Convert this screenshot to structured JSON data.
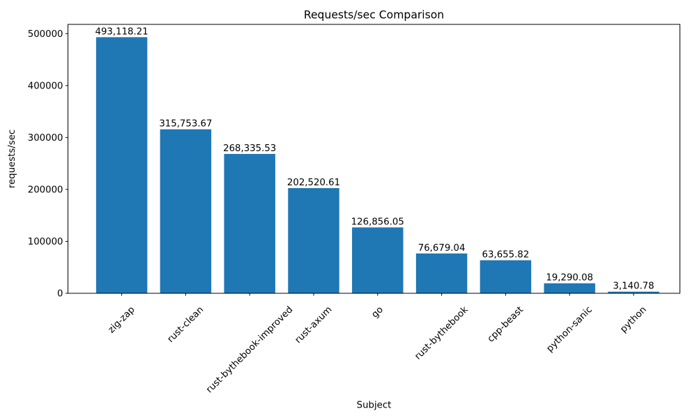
{
  "chart_data": {
    "type": "bar",
    "title": "Requests/sec Comparison",
    "xlabel": "Subject",
    "ylabel": "requests/sec",
    "categories": [
      "zig-zap",
      "rust-clean",
      "rust-bythebook-improved",
      "rust-axum",
      "go",
      "rust-bythebook",
      "cpp-beast",
      "python-sanic",
      "python"
    ],
    "values": [
      493118.21,
      315753.67,
      268335.53,
      202520.61,
      126856.05,
      76679.04,
      63655.82,
      19290.08,
      3140.78
    ],
    "value_labels": [
      "493,118.21",
      "315,753.67",
      "268,335.53",
      "202,520.61",
      "126,856.05",
      "76,679.04",
      "63,655.82",
      "19,290.08",
      "3,140.78"
    ],
    "y_ticks": [
      0,
      100000,
      200000,
      300000,
      400000,
      500000
    ],
    "y_tick_labels": [
      "0",
      "100000",
      "200000",
      "300000",
      "400000",
      "500000"
    ],
    "ylim": [
      0,
      517774
    ],
    "x_tick_rotation": 45,
    "bar_color": "#1f77b4",
    "grid": false,
    "legend": "none"
  }
}
